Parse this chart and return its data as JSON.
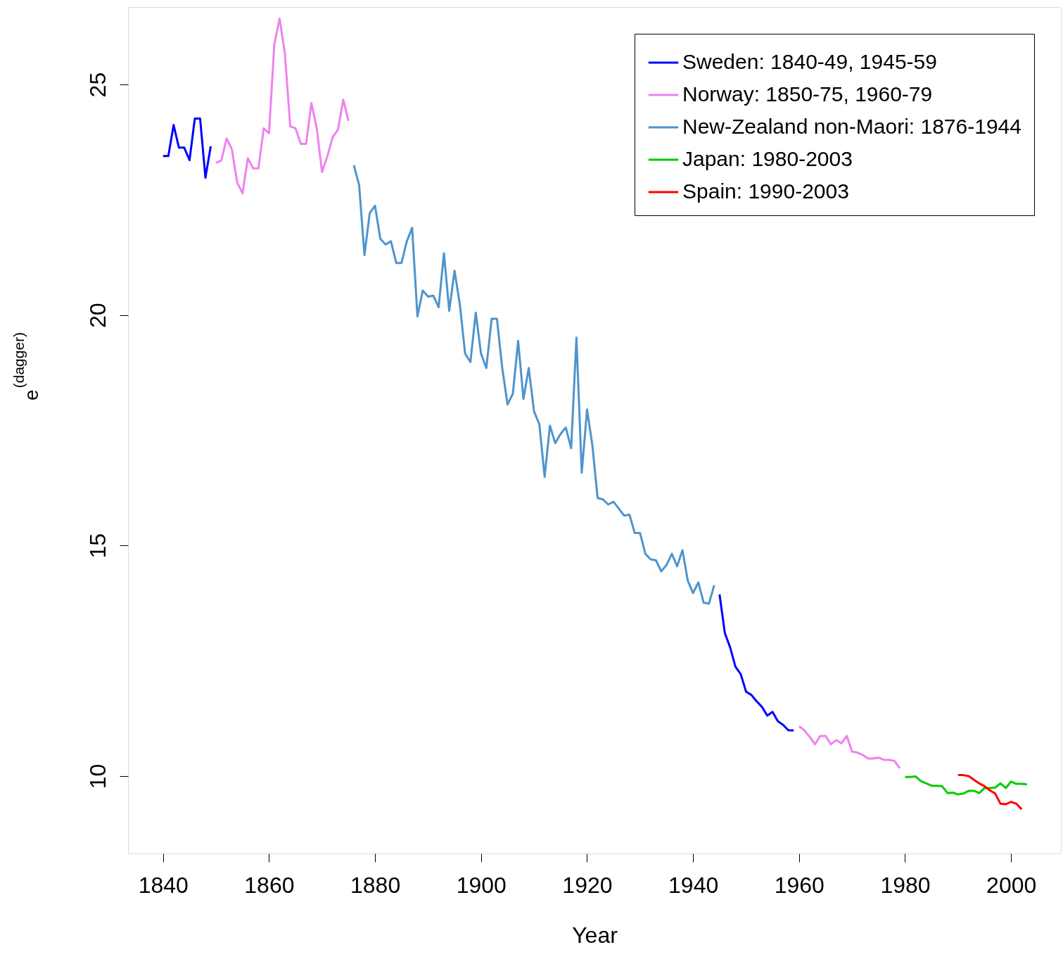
{
  "chart_data": {
    "type": "line",
    "xlabel": "Year",
    "ylabel": "e$^{(dagger)}$",
    "xlim": [
      1833.4,
      2009.4
    ],
    "ylim": [
      8.32,
      26.68
    ],
    "xticks": [
      1840,
      1860,
      1880,
      1900,
      1920,
      1940,
      1960,
      1980,
      2000
    ],
    "yticks": [
      10,
      15,
      20,
      25
    ],
    "grid": false,
    "legend": "top right",
    "marker": "none",
    "line_style": "solid",
    "series": [
      {
        "name": "Sweden: 1840-49, 1945-59",
        "color": "#0000ff",
        "x": [
          1840,
          1841,
          1842,
          1843,
          1844,
          1845,
          1846,
          1847,
          1848,
          1849,
          null,
          1945,
          1946,
          1947,
          1948,
          1949,
          1950,
          1951,
          1952,
          1953,
          1954,
          1955,
          1956,
          1957,
          1958,
          1959
        ],
        "values": [
          23.45,
          23.45,
          24.12,
          23.63,
          23.63,
          23.36,
          24.26,
          24.26,
          22.98,
          23.66,
          null,
          13.94,
          13.1,
          12.79,
          12.37,
          12.21,
          11.83,
          11.76,
          11.62,
          11.5,
          11.31,
          11.39,
          11.19,
          11.11,
          10.99,
          10.99
        ]
      },
      {
        "name": "Norway: 1850-75, 1960-79",
        "color": "#ee82ee",
        "x": [
          1850,
          1851,
          1852,
          1853,
          1854,
          1855,
          1856,
          1857,
          1858,
          1859,
          1860,
          1861,
          1862,
          1863,
          1864,
          1865,
          1866,
          1867,
          1868,
          1869,
          1870,
          1871,
          1872,
          1873,
          1874,
          1875,
          null,
          1960,
          1961,
          1962,
          1963,
          1964,
          1965,
          1966,
          1967,
          1968,
          1969,
          1970,
          1971,
          1972,
          1973,
          1974,
          1975,
          1976,
          1977,
          1978,
          1979
        ],
        "values": [
          23.3,
          23.35,
          23.83,
          23.59,
          22.87,
          22.64,
          23.4,
          23.18,
          23.18,
          24.05,
          23.94,
          25.88,
          26.43,
          25.66,
          24.09,
          24.05,
          23.71,
          23.71,
          24.6,
          24.05,
          23.1,
          23.44,
          23.86,
          24.02,
          24.67,
          24.21,
          null,
          11.08,
          10.99,
          10.85,
          10.69,
          10.87,
          10.87,
          10.69,
          10.78,
          10.71,
          10.87,
          10.53,
          10.51,
          10.46,
          10.38,
          10.38,
          10.4,
          10.35,
          10.35,
          10.33,
          10.17
        ]
      },
      {
        "name": "New-Zealand non-Maori: 1876-1944",
        "color": "#4f94cd",
        "x": [
          1876,
          1877,
          1878,
          1879,
          1880,
          1881,
          1882,
          1883,
          1884,
          1885,
          1886,
          1887,
          1888,
          1889,
          1890,
          1891,
          1892,
          1893,
          1894,
          1895,
          1896,
          1897,
          1898,
          1899,
          1900,
          1901,
          1902,
          1903,
          1904,
          1905,
          1906,
          1907,
          1908,
          1909,
          1910,
          1911,
          1912,
          1913,
          1914,
          1915,
          1916,
          1917,
          1918,
          1919,
          1920,
          1921,
          1922,
          1923,
          1924,
          1925,
          1926,
          1927,
          1928,
          1929,
          1930,
          1931,
          1932,
          1933,
          1934,
          1935,
          1936,
          1937,
          1938,
          1939,
          1940,
          1941,
          1942,
          1943,
          1944
        ],
        "values": [
          23.25,
          22.82,
          21.3,
          22.21,
          22.37,
          21.65,
          21.53,
          21.6,
          21.13,
          21.13,
          21.6,
          21.89,
          19.97,
          20.53,
          20.4,
          20.42,
          20.17,
          21.34,
          20.09,
          20.96,
          20.23,
          19.16,
          18.98,
          20.05,
          19.16,
          18.85,
          19.92,
          19.92,
          18.85,
          18.06,
          18.29,
          19.44,
          18.18,
          18.85,
          17.91,
          17.63,
          16.49,
          17.6,
          17.22,
          17.42,
          17.56,
          17.11,
          19.51,
          16.58,
          17.95,
          17.18,
          16.03,
          16.0,
          15.89,
          15.95,
          15.8,
          15.65,
          15.67,
          15.27,
          15.27,
          14.82,
          14.7,
          14.68,
          14.44,
          14.58,
          14.82,
          14.55,
          14.9,
          14.24,
          13.97,
          14.2,
          13.76,
          13.74,
          14.14
        ]
      },
      {
        "name": "Japan: 1980-2003",
        "color": "#00cd00",
        "x": [
          1980,
          1981,
          1982,
          1983,
          1984,
          1985,
          1986,
          1987,
          1988,
          1989,
          1990,
          1991,
          1992,
          1993,
          1994,
          1995,
          1996,
          1997,
          1998,
          1999,
          2000,
          2001,
          2002,
          2003
        ],
        "values": [
          9.98,
          9.98,
          9.99,
          9.89,
          9.84,
          9.79,
          9.79,
          9.78,
          9.63,
          9.64,
          9.6,
          9.62,
          9.68,
          9.68,
          9.63,
          9.74,
          9.74,
          9.75,
          9.84,
          9.74,
          9.88,
          9.83,
          9.83,
          9.82
        ]
      },
      {
        "name": "Spain: 1990-2003",
        "color": "#ff0000",
        "x": [
          1990,
          1991,
          1992,
          1993,
          1994,
          1995,
          1996,
          1997,
          1998,
          1999,
          2000,
          2001,
          2002
        ],
        "values": [
          10.02,
          10.02,
          10.0,
          9.92,
          9.84,
          9.78,
          9.69,
          9.62,
          9.4,
          9.39,
          9.44,
          9.4,
          9.28
        ]
      }
    ]
  }
}
